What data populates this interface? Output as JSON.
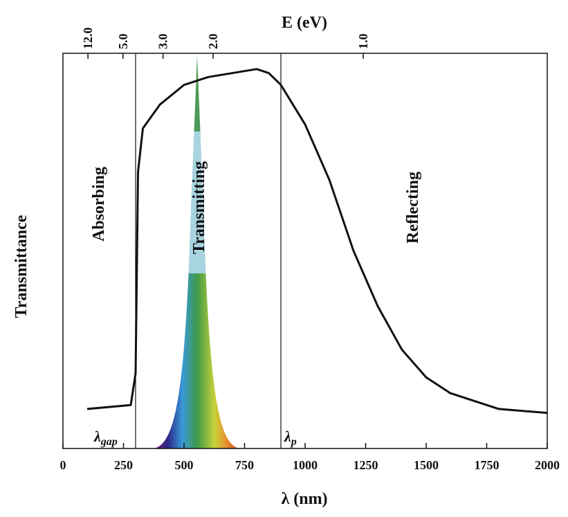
{
  "chart_data": {
    "type": "line",
    "x_label": "λ (nm)",
    "y_label": "Transmittance",
    "top_label": "E (eV)",
    "x": [
      100,
      280,
      300,
      310,
      330,
      400,
      500,
      600,
      800,
      850,
      900,
      1000,
      1100,
      1200,
      1300,
      1400,
      1500,
      1600,
      1800,
      2000
    ],
    "values": [
      0.1,
      0.11,
      0.19,
      0.7,
      0.81,
      0.87,
      0.92,
      0.94,
      0.96,
      0.95,
      0.92,
      0.82,
      0.68,
      0.5,
      0.36,
      0.25,
      0.18,
      0.14,
      0.1,
      0.09
    ],
    "color": "#111111",
    "xlim": [
      0,
      2000
    ],
    "ylim": [
      0,
      1
    ],
    "xticks": [
      0,
      250,
      500,
      750,
      1000,
      1250,
      1500,
      1750,
      2000
    ],
    "top_ticks": [
      {
        "value": 12,
        "label": "12.0"
      },
      {
        "value": 5,
        "label": "5.0"
      },
      {
        "value": 3,
        "label": "3.0"
      },
      {
        "value": 2,
        "label": "2.0"
      },
      {
        "value": 1,
        "label": "1.0"
      }
    ],
    "markers": [
      {
        "x": 300,
        "symbol": "λ",
        "subscript": "gap"
      },
      {
        "x": 900,
        "symbol": "λ",
        "subscript": "p"
      }
    ],
    "regions": [
      "Absorbing",
      "Transmitting",
      "Reflecting"
    ]
  }
}
